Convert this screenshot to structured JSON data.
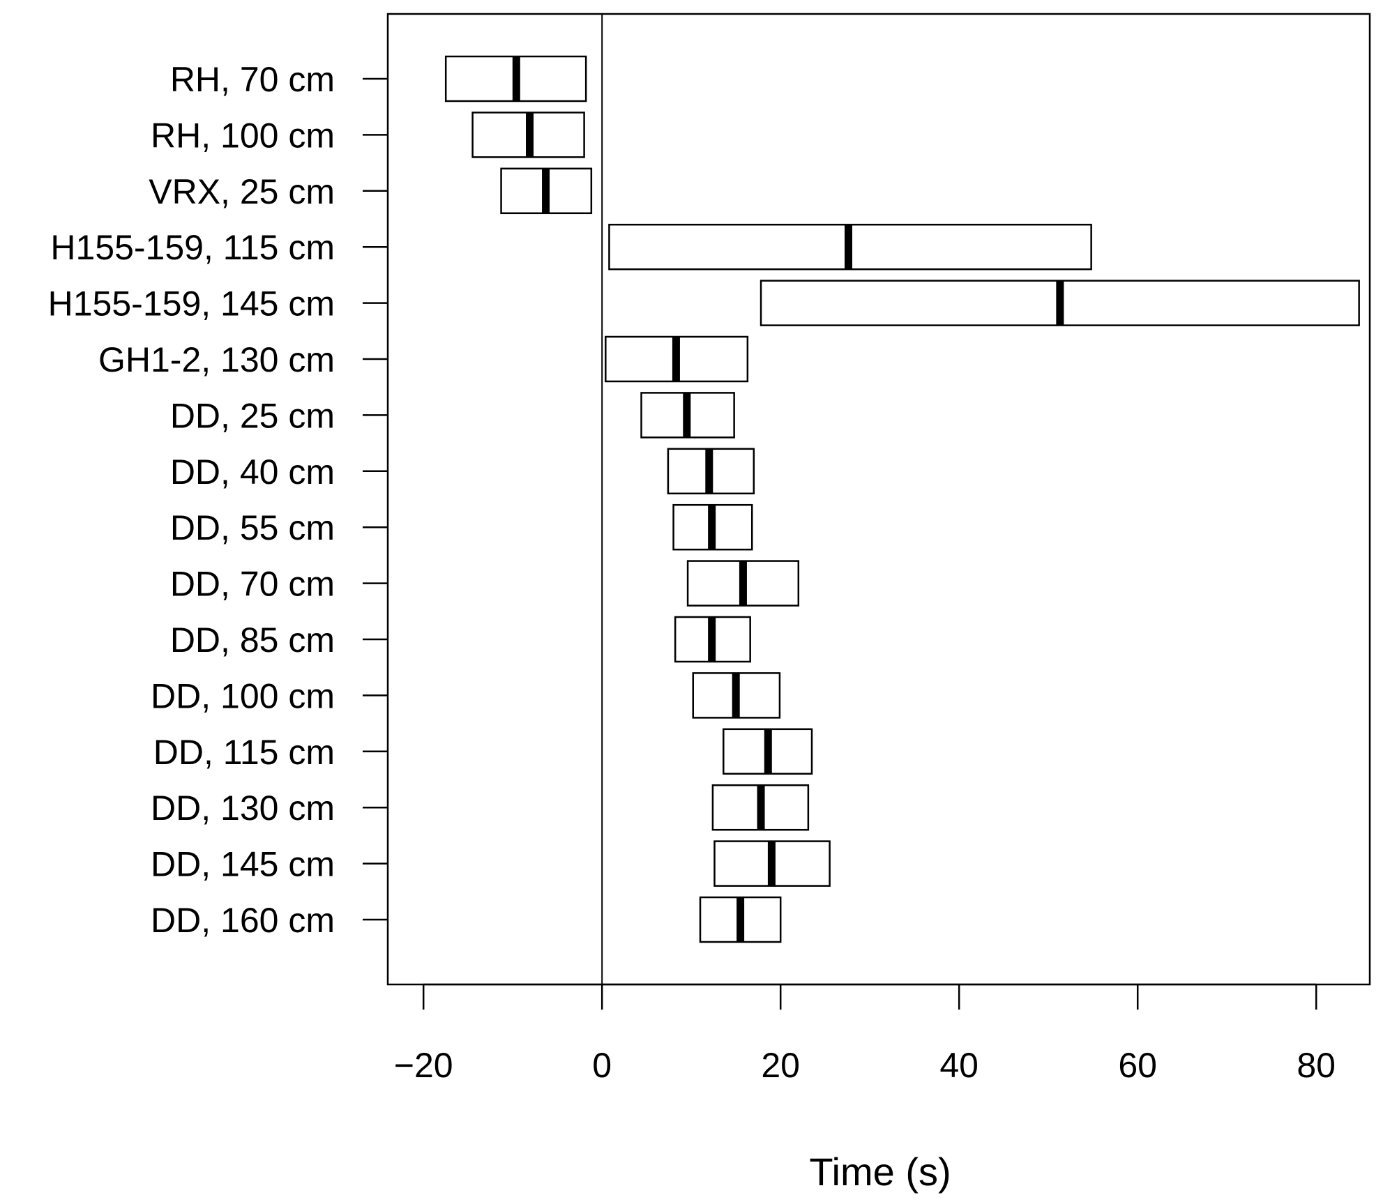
{
  "chart_data": {
    "type": "box",
    "title": "",
    "xlabel": "Time (s)",
    "ylabel": "",
    "xlim": [
      -24,
      86
    ],
    "x_ticks": [
      -20,
      0,
      20,
      40,
      60,
      80
    ],
    "x_tick_labels": [
      "−20",
      "0",
      "20",
      "40",
      "60",
      "80"
    ],
    "reference_line_x": 0,
    "categories": [
      "RH, 70 cm",
      "RH, 100 cm",
      "VRX, 25 cm",
      "H155-159, 115 cm",
      "H155-159, 145 cm",
      "GH1-2, 130 cm",
      "DD, 25 cm",
      "DD, 40 cm",
      "DD, 55 cm",
      "DD, 70 cm",
      "DD, 85 cm",
      "DD, 100 cm",
      "DD, 115 cm",
      "DD, 130 cm",
      "DD, 145 cm",
      "DD, 160 cm"
    ],
    "series": [
      {
        "name": "lower",
        "values": [
          -17.5,
          -14.5,
          -11.3,
          0.8,
          17.8,
          0.4,
          4.4,
          7.4,
          8.0,
          9.6,
          8.2,
          10.2,
          13.6,
          12.4,
          12.6,
          11.0
        ]
      },
      {
        "name": "median",
        "values": [
          -9.6,
          -8.1,
          -6.3,
          27.6,
          51.3,
          8.3,
          9.5,
          12.0,
          12.3,
          15.8,
          12.3,
          15.0,
          18.6,
          17.8,
          19.0,
          15.5
        ]
      },
      {
        "name": "upper",
        "values": [
          -1.8,
          -2.0,
          -1.2,
          54.8,
          84.8,
          16.3,
          14.8,
          17.0,
          16.8,
          22.0,
          16.6,
          19.9,
          23.5,
          23.1,
          25.5,
          20.0
        ]
      }
    ]
  }
}
